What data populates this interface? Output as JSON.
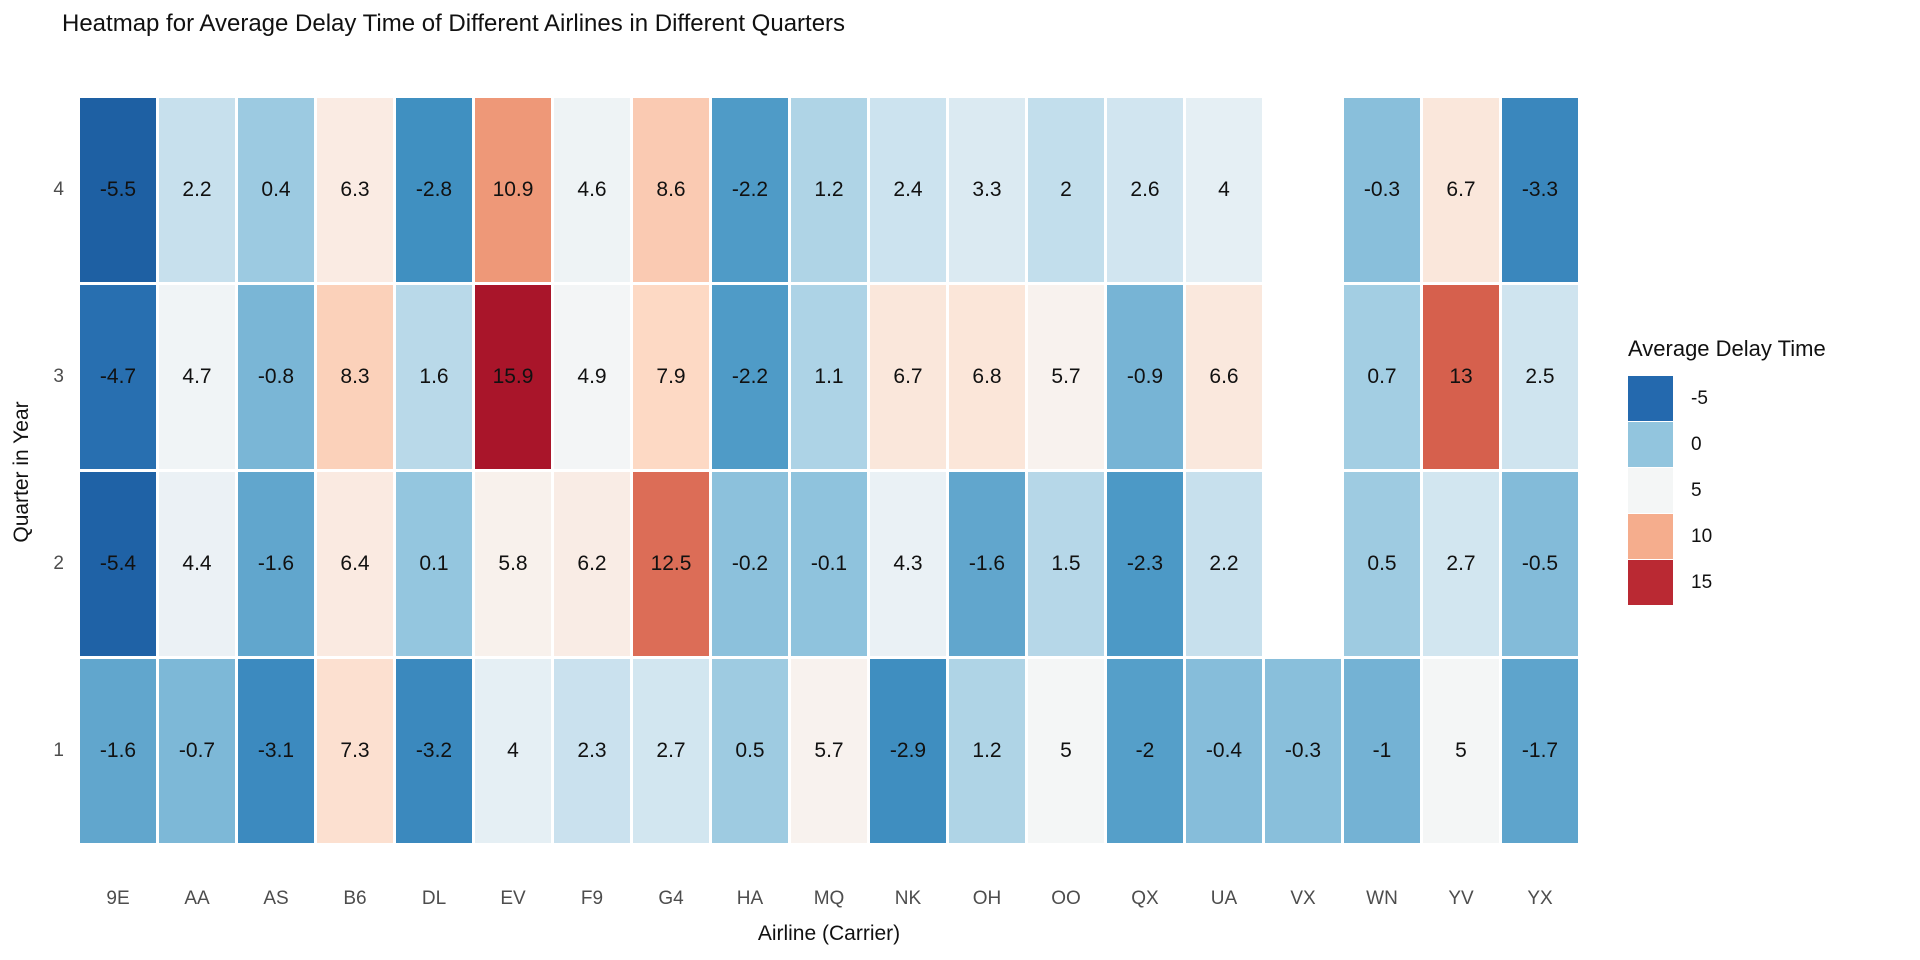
{
  "title": "Heatmap for Average Delay Time of Different Airlines in Different Quarters",
  "chart_data": {
    "type": "heatmap",
    "title": "Heatmap for Average Delay Time of Different Airlines in Different Quarters",
    "xlabel": "Airline (Carrier)",
    "ylabel": "Quarter in Year",
    "x_categories": [
      "9E",
      "AA",
      "AS",
      "B6",
      "DL",
      "EV",
      "F9",
      "G4",
      "HA",
      "MQ",
      "NK",
      "OH",
      "OO",
      "QX",
      "UA",
      "VX",
      "WN",
      "YV",
      "YX"
    ],
    "y_categories_top_to_bottom": [
      "4",
      "3",
      "2",
      "1"
    ],
    "rows": [
      {
        "quarter": "4",
        "values": [
          -5.5,
          2.2,
          0.4,
          6.3,
          -2.8,
          10.9,
          4.6,
          8.6,
          -2.2,
          1.2,
          2.4,
          3.3,
          2,
          2.6,
          4,
          null,
          -0.3,
          6.7,
          -3.3
        ]
      },
      {
        "quarter": "3",
        "values": [
          -4.7,
          4.7,
          -0.8,
          8.3,
          1.6,
          15.9,
          4.9,
          7.9,
          -2.2,
          1.1,
          6.7,
          6.8,
          5.7,
          -0.9,
          6.6,
          null,
          0.7,
          13,
          2.5
        ]
      },
      {
        "quarter": "2",
        "values": [
          -5.4,
          4.4,
          -1.6,
          6.4,
          0.1,
          5.8,
          6.2,
          12.5,
          -0.2,
          -0.1,
          4.3,
          -1.6,
          1.5,
          -2.3,
          2.2,
          null,
          0.5,
          2.7,
          -0.5
        ]
      },
      {
        "quarter": "1",
        "values": [
          -1.6,
          -0.7,
          -3.1,
          7.3,
          -3.2,
          4,
          2.3,
          2.7,
          0.5,
          5.7,
          -2.9,
          1.2,
          5,
          -2,
          -0.4,
          -0.3,
          -1,
          5,
          -1.7
        ]
      }
    ],
    "legend": {
      "title": "Average Delay Time",
      "ticks": [
        -5,
        0,
        5,
        10,
        15
      ]
    },
    "palette": {
      "stops": [
        "#053061",
        "#2166ac",
        "#4393c3",
        "#92c5de",
        "#d1e5f0",
        "#f7f7f7",
        "#fddbc7",
        "#f4a582",
        "#d6604d",
        "#b2182b",
        "#67001f"
      ],
      "domain_mid": 5.2,
      "domain_span": 26
    },
    "grid": false,
    "legend_position": "right"
  }
}
